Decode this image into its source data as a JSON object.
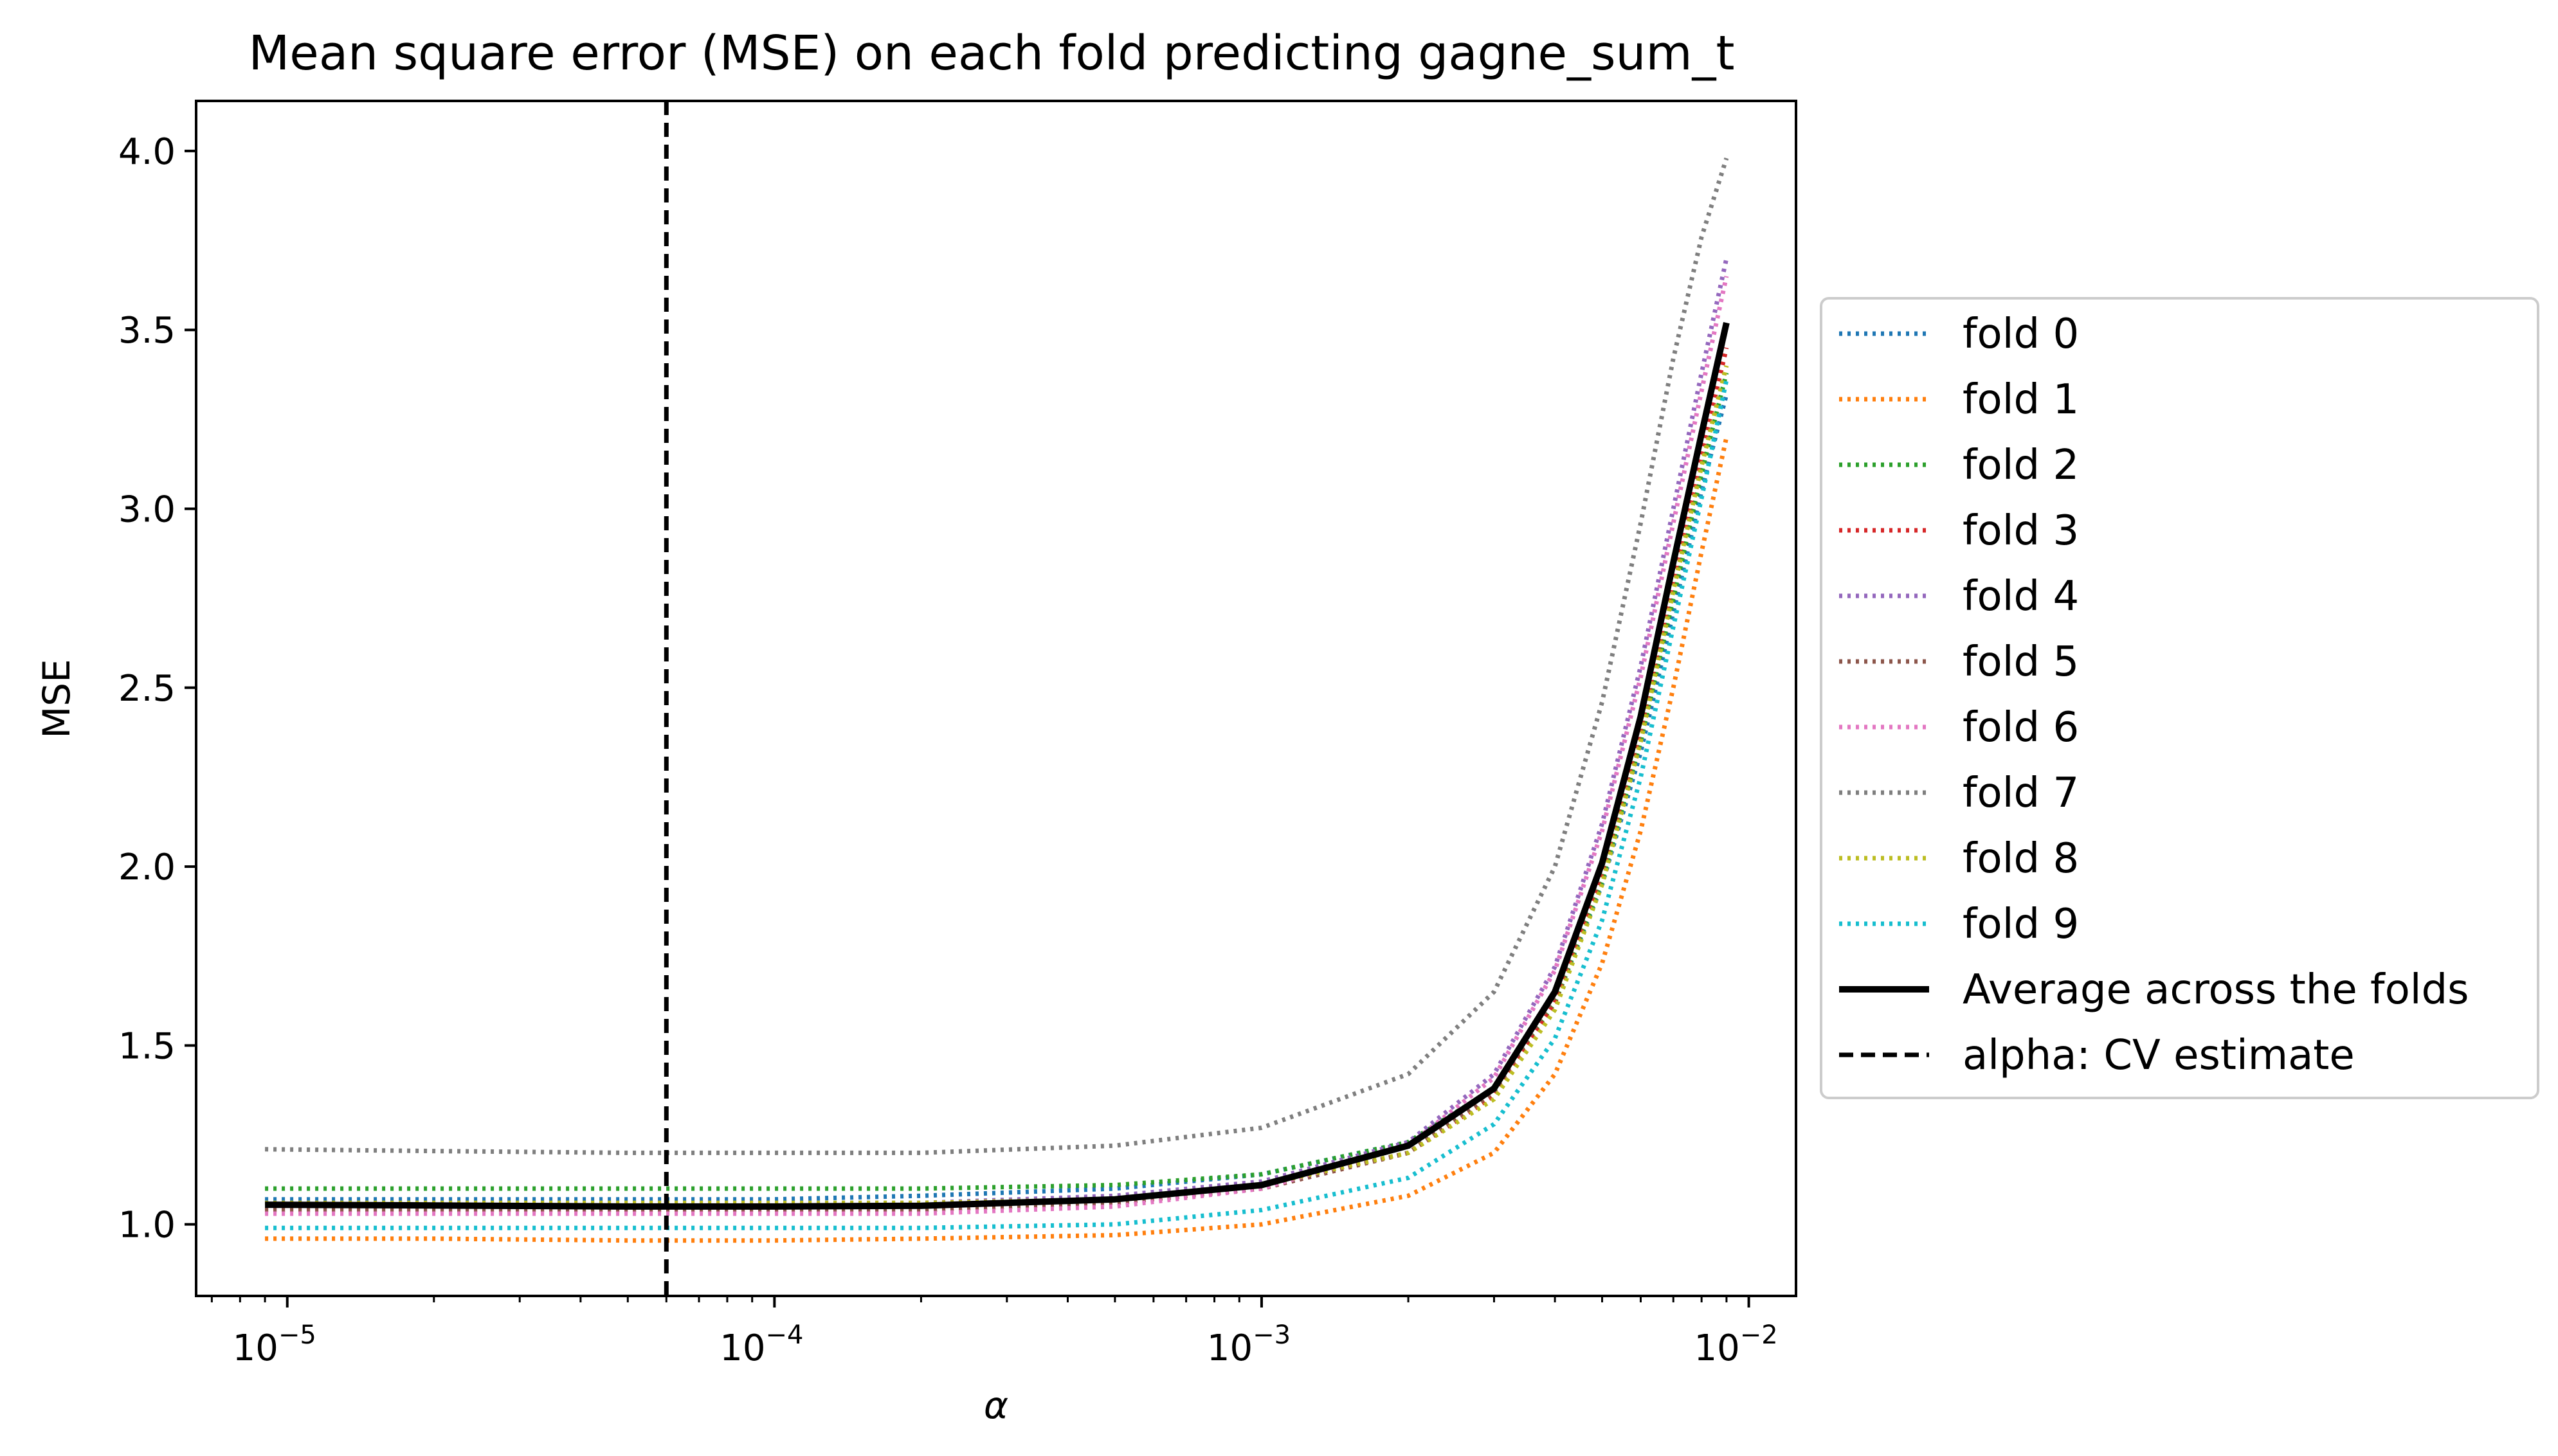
{
  "chart_data": {
    "type": "line",
    "title": "Mean square error (MSE) on each fold predicting gagne_sum_t",
    "xlabel": "α",
    "ylabel": "MSE",
    "xscale": "log",
    "xlim": [
      6.5e-06,
      0.0125
    ],
    "ylim": [
      0.8,
      4.14
    ],
    "x_ticks": [
      {
        "base": "10",
        "exp": "−5",
        "value": 1e-05
      },
      {
        "base": "10",
        "exp": "−4",
        "value": 0.0001
      },
      {
        "base": "10",
        "exp": "−3",
        "value": 0.001
      },
      {
        "base": "10",
        "exp": "−2",
        "value": 0.01
      }
    ],
    "y_ticks": [
      "1.0",
      "1.5",
      "2.0",
      "2.5",
      "3.0",
      "3.5",
      "4.0"
    ],
    "grid": false,
    "legend_position": "outside right",
    "x": [
      9e-06,
      2e-05,
      5e-05,
      0.0001,
      0.0002,
      0.0005,
      0.001,
      0.002,
      0.003,
      0.004,
      0.005,
      0.006,
      0.007,
      0.008,
      0.009
    ],
    "series": [
      {
        "name": "fold 0",
        "color": "#1f77b4",
        "style": "dotted",
        "values": [
          1.07,
          1.07,
          1.07,
          1.07,
          1.08,
          1.1,
          1.14,
          1.23,
          1.38,
          1.62,
          1.95,
          2.32,
          2.71,
          3.05,
          3.32
        ]
      },
      {
        "name": "fold 1",
        "color": "#ff7f0e",
        "style": "dotted",
        "values": [
          0.96,
          0.96,
          0.955,
          0.955,
          0.96,
          0.97,
          1.0,
          1.08,
          1.2,
          1.42,
          1.73,
          2.1,
          2.5,
          2.88,
          3.2
        ]
      },
      {
        "name": "fold 2",
        "color": "#2ca02c",
        "style": "dotted",
        "values": [
          1.1,
          1.1,
          1.1,
          1.1,
          1.1,
          1.11,
          1.14,
          1.23,
          1.38,
          1.62,
          1.96,
          2.35,
          2.75,
          3.1,
          3.38
        ]
      },
      {
        "name": "fold 3",
        "color": "#d62728",
        "style": "dotted",
        "values": [
          1.04,
          1.04,
          1.04,
          1.04,
          1.04,
          1.06,
          1.1,
          1.2,
          1.36,
          1.62,
          1.98,
          2.38,
          2.8,
          3.15,
          3.45
        ]
      },
      {
        "name": "fold 4",
        "color": "#9467bd",
        "style": "dotted",
        "values": [
          1.06,
          1.06,
          1.06,
          1.06,
          1.06,
          1.08,
          1.12,
          1.23,
          1.42,
          1.72,
          2.12,
          2.56,
          3.0,
          3.38,
          3.7
        ]
      },
      {
        "name": "fold 5",
        "color": "#8c564b",
        "style": "dotted",
        "values": [
          1.04,
          1.04,
          1.04,
          1.04,
          1.04,
          1.06,
          1.1,
          1.2,
          1.37,
          1.64,
          2.0,
          2.42,
          2.85,
          3.22,
          3.52
        ]
      },
      {
        "name": "fold 6",
        "color": "#e377c2",
        "style": "dotted",
        "values": [
          1.03,
          1.03,
          1.03,
          1.03,
          1.03,
          1.05,
          1.1,
          1.22,
          1.41,
          1.71,
          2.1,
          2.53,
          2.96,
          3.33,
          3.65
        ]
      },
      {
        "name": "fold 7",
        "color": "#7f7f7f",
        "style": "dotted",
        "values": [
          1.21,
          1.205,
          1.2,
          1.2,
          1.2,
          1.22,
          1.27,
          1.42,
          1.65,
          2.0,
          2.46,
          2.96,
          3.42,
          3.76,
          3.98
        ]
      },
      {
        "name": "fold 8",
        "color": "#bcbd22",
        "style": "dotted",
        "values": [
          1.06,
          1.06,
          1.06,
          1.06,
          1.06,
          1.07,
          1.11,
          1.2,
          1.35,
          1.6,
          1.95,
          2.35,
          2.77,
          3.12,
          3.4
        ]
      },
      {
        "name": "fold 9",
        "color": "#17becf",
        "style": "dotted",
        "values": [
          0.99,
          0.99,
          0.99,
          0.99,
          0.99,
          1.0,
          1.04,
          1.13,
          1.28,
          1.52,
          1.85,
          2.25,
          2.67,
          3.03,
          3.36
        ]
      },
      {
        "name": "Average across the folds",
        "color": "#000000",
        "style": "solid",
        "values": [
          1.055,
          1.053,
          1.05,
          1.05,
          1.052,
          1.07,
          1.11,
          1.22,
          1.38,
          1.65,
          2.01,
          2.42,
          2.85,
          3.21,
          3.52
        ]
      }
    ],
    "vlines": [
      {
        "name": "alpha: CV estimate",
        "x": 6e-05,
        "color": "#000000",
        "style": "dashed"
      }
    ]
  }
}
